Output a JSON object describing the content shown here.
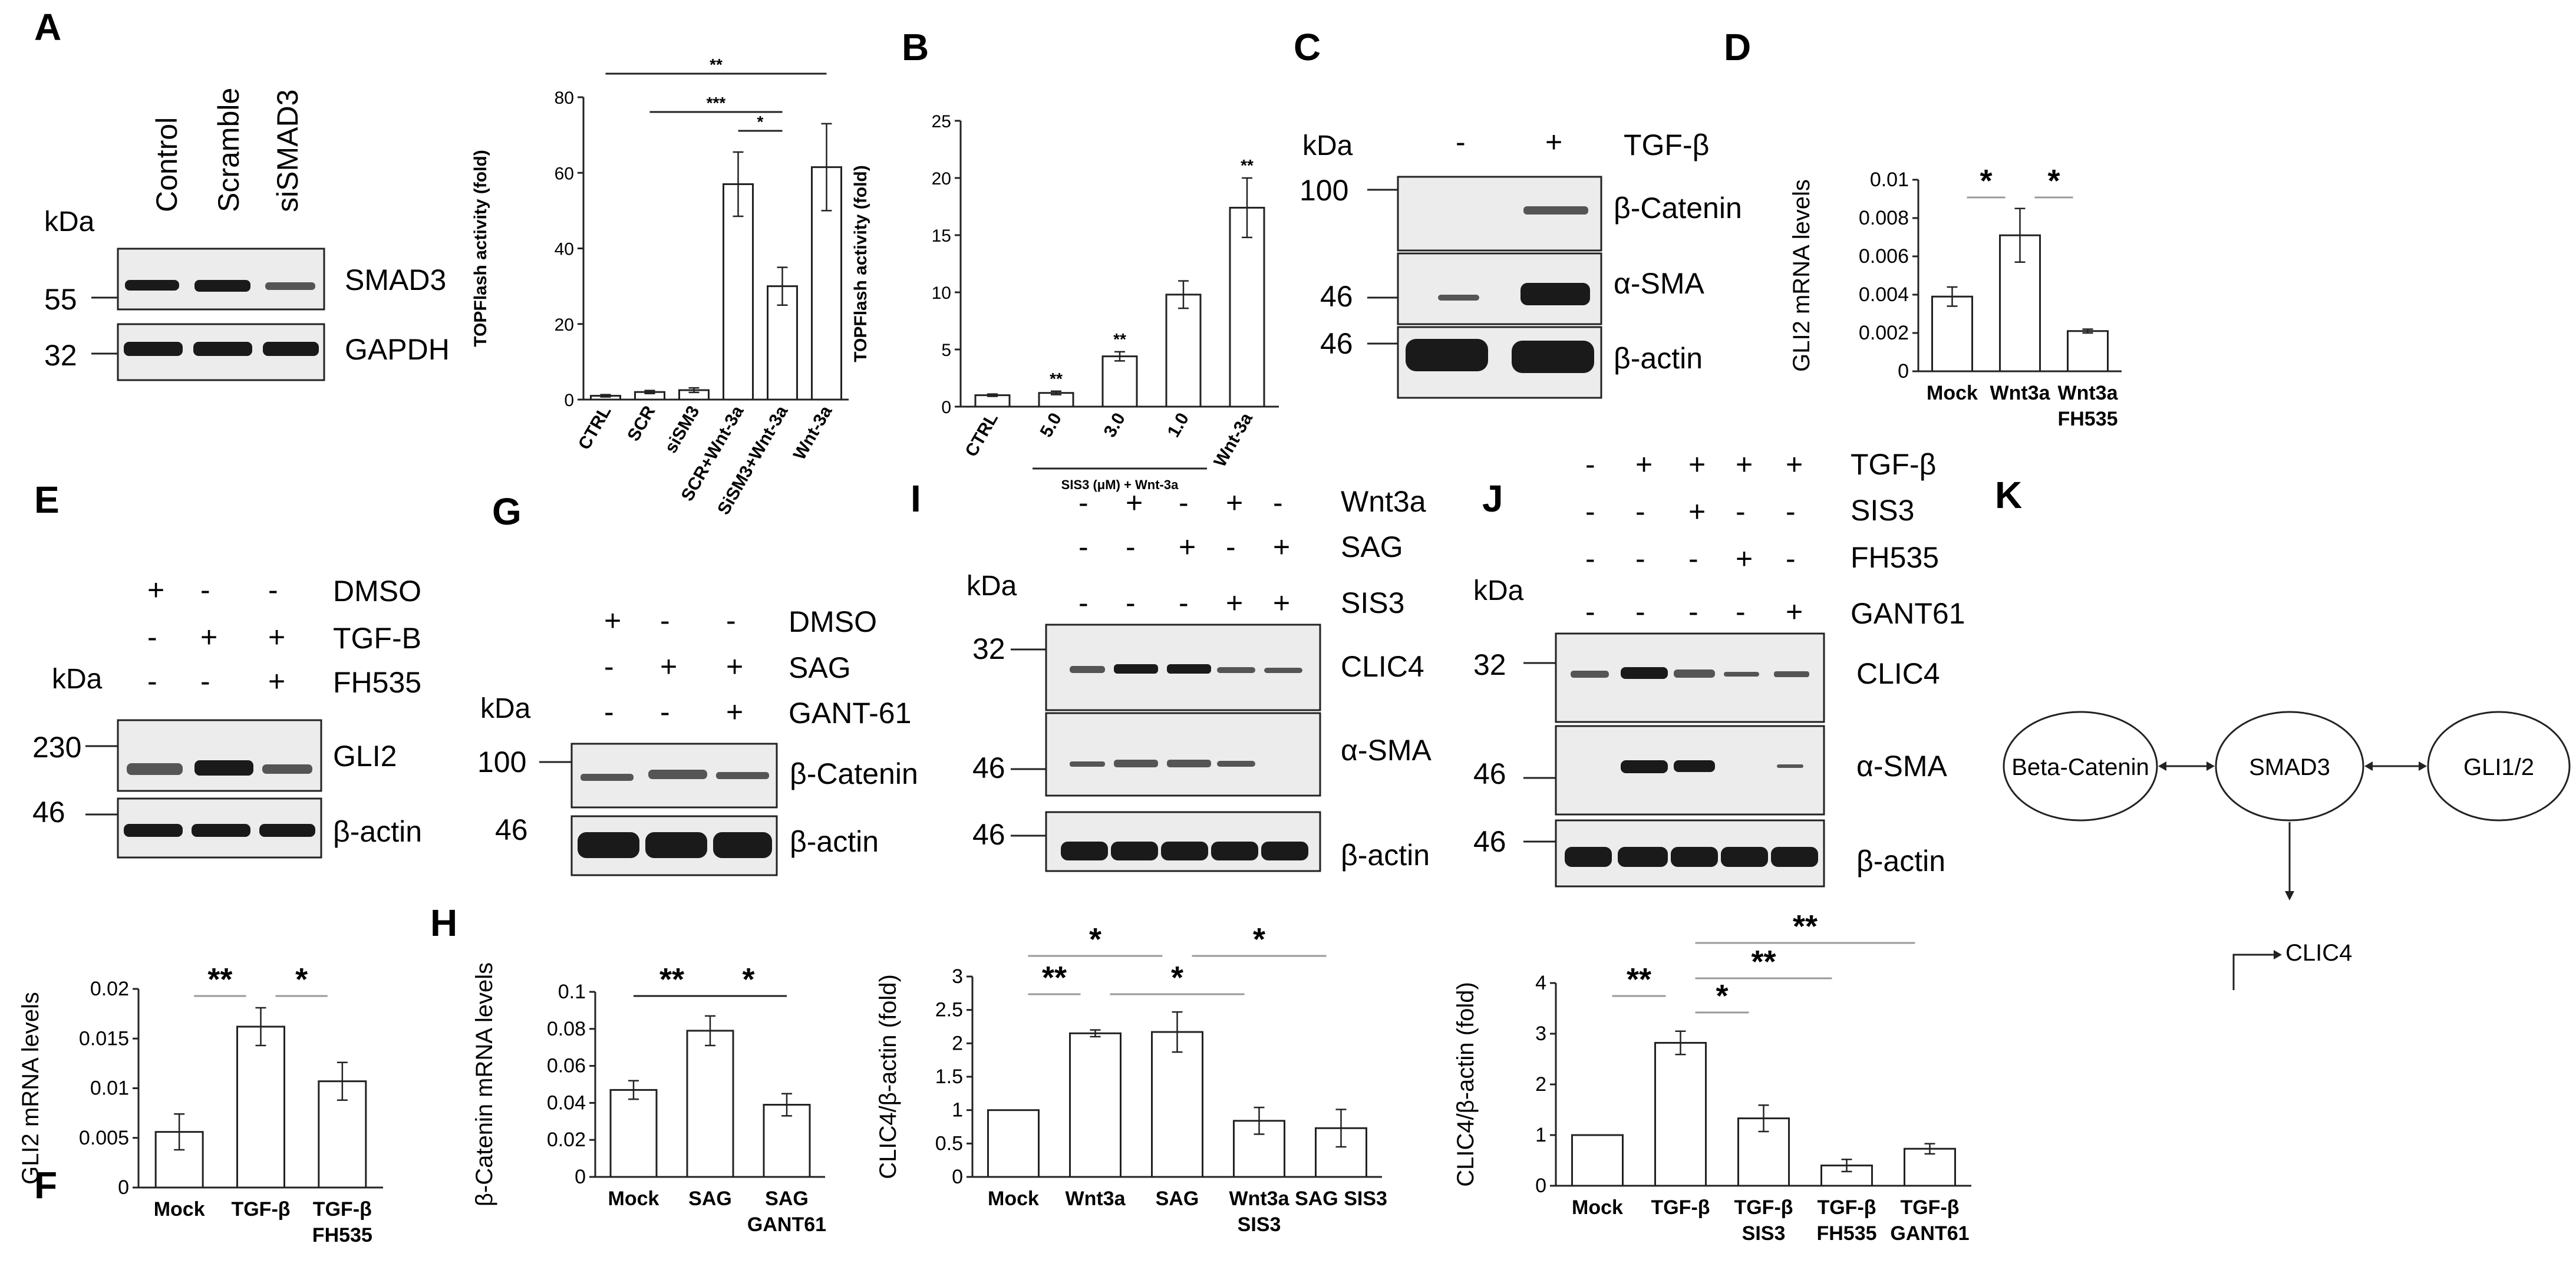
{
  "panel_labels": [
    "A",
    "B",
    "C",
    "D",
    "E",
    "F",
    "G",
    "H",
    "I",
    "J",
    "K"
  ],
  "kda": "kDa",
  "A": {
    "lanes": [
      "Control",
      "Scramble",
      "siSMAD3"
    ],
    "markers": [
      "55",
      "32"
    ],
    "rows": [
      "SMAD3",
      "GAPDH"
    ]
  },
  "C": {
    "signs": [
      "-",
      "+"
    ],
    "treatment": "TGF-β",
    "markers": [
      "100",
      "46",
      "46"
    ],
    "rows": [
      "β-Catenin",
      "α-SMA",
      "β-actin"
    ]
  },
  "E": {
    "conds": [
      {
        "label": "DMSO",
        "signs": [
          "+",
          "-",
          "-"
        ]
      },
      {
        "label": "TGF-B",
        "signs": [
          "-",
          "+",
          "+"
        ]
      },
      {
        "label": "FH535",
        "signs": [
          "-",
          "-",
          "+"
        ]
      }
    ],
    "markers": [
      "230",
      "46"
    ],
    "rows": [
      "GLI2",
      "β-actin"
    ]
  },
  "G": {
    "conds": [
      {
        "label": "DMSO",
        "signs": [
          "+",
          "-",
          "-"
        ]
      },
      {
        "label": "SAG",
        "signs": [
          "-",
          "+",
          "+"
        ]
      },
      {
        "label": "GANT-61",
        "signs": [
          "-",
          "-",
          "+"
        ]
      }
    ],
    "markers": [
      "100",
      "46"
    ],
    "rows": [
      "β-Catenin",
      "β-actin"
    ]
  },
  "I": {
    "conds": [
      {
        "label": "Wnt3a",
        "signs": [
          "-",
          "+",
          "-",
          "+",
          "-"
        ]
      },
      {
        "label": "SAG",
        "signs": [
          "-",
          "-",
          "+",
          "-",
          "+"
        ]
      },
      {
        "label": "SIS3",
        "signs": [
          "-",
          "-",
          "-",
          "+",
          "+"
        ]
      }
    ],
    "markers": [
      "32",
      "46",
      "46"
    ],
    "rows": [
      "CLIC4",
      "α-SMA",
      "β-actin"
    ]
  },
  "J": {
    "conds": [
      {
        "label": "TGF-β",
        "signs": [
          "-",
          "+",
          "+",
          "+",
          "+"
        ]
      },
      {
        "label": "SIS3",
        "signs": [
          "-",
          "-",
          "+",
          "-",
          "-"
        ]
      },
      {
        "label": "FH535",
        "signs": [
          "-",
          "-",
          "-",
          "+",
          "-"
        ]
      },
      {
        "label": "GANT61",
        "signs": [
          "-",
          "-",
          "-",
          "-",
          "+"
        ]
      }
    ],
    "markers": [
      "32",
      "46",
      "46"
    ],
    "rows": [
      "CLIC4",
      "α-SMA",
      "β-actin"
    ]
  },
  "K": {
    "nodes": [
      "Beta-Catenin",
      "SMAD3",
      "GLI1/2"
    ],
    "gene": "CLIC4"
  },
  "chart_data": [
    {
      "id": "A-chart",
      "type": "bar",
      "ylabel": "TOPFlash activity (fold)",
      "categories": [
        "CTRL",
        "SCR",
        "siSM3",
        "SCR+Wnt-3a",
        "SiSM3+Wnt-3a",
        "Wnt-3a"
      ],
      "values": [
        1,
        2,
        2.5,
        57,
        30,
        61.5
      ],
      "errors": [
        0.3,
        0.4,
        0.6,
        8.5,
        5,
        11.5
      ],
      "ylim": [
        0,
        80
      ],
      "yticks": [
        "0",
        "20",
        "40",
        "60",
        "80"
      ],
      "annotations": [
        {
          "text": "**",
          "from": 0,
          "to": 5
        },
        {
          "text": "***",
          "from": 1,
          "to": 4
        },
        {
          "text": "*",
          "from": 3,
          "to": 4
        }
      ]
    },
    {
      "id": "B-chart",
      "type": "bar",
      "ylabel": "TOPFlash activity (fold)",
      "categories": [
        "CTRL",
        "5.0",
        "3.0",
        "1.0",
        "Wnt-3a"
      ],
      "group_label": "SIS3 (μM) + Wnt-3a",
      "values": [
        1,
        1.2,
        4.4,
        9.8,
        17.4
      ],
      "errors": [
        0.1,
        0.15,
        0.4,
        1.2,
        2.6
      ],
      "ylim": [
        0,
        25
      ],
      "yticks": [
        "0",
        "5",
        "10",
        "15",
        "20",
        "25"
      ],
      "bar_labels": [
        "",
        "**",
        "**",
        "",
        "**"
      ]
    },
    {
      "id": "D-chart",
      "type": "bar",
      "ylabel": "GLI2 mRNA levels",
      "categories": [
        "Mock",
        "Wnt3a",
        "Wnt3a FH535"
      ],
      "values": [
        0.0039,
        0.0071,
        0.0021
      ],
      "errors": [
        0.0005,
        0.0014,
        0.0001
      ],
      "ylim": [
        0,
        0.01
      ],
      "yticks": [
        "0",
        "0.002",
        "0.004",
        "0.006",
        "0.008",
        "0.01"
      ],
      "annotations": [
        {
          "text": "*",
          "from": 0,
          "to": 1
        },
        {
          "text": "*",
          "from": 1,
          "to": 2
        }
      ]
    },
    {
      "id": "F-chart",
      "type": "bar",
      "ylabel": "GLI2 mRNA levels",
      "categories": [
        "Mock",
        "TGF-β",
        "TGF-β FH535"
      ],
      "values": [
        0.0056,
        0.0162,
        0.0107
      ],
      "errors": [
        0.0018,
        0.0019,
        0.0019
      ],
      "ylim": [
        0,
        0.02
      ],
      "yticks": [
        "0",
        "0.005",
        "0.01",
        "0.015",
        "0.02"
      ],
      "annotations": [
        {
          "text": "**",
          "from": 0,
          "to": 1
        },
        {
          "text": "*",
          "from": 1,
          "to": 2
        }
      ]
    },
    {
      "id": "H-chart",
      "type": "bar",
      "ylabel": "β-Catenin mRNA levels",
      "categories": [
        "Mock",
        "SAG",
        "SAG GANT61"
      ],
      "values": [
        0.047,
        0.079,
        0.039
      ],
      "errors": [
        0.005,
        0.008,
        0.006
      ],
      "ylim": [
        0,
        0.1
      ],
      "yticks": [
        "0",
        "0.02",
        "0.04",
        "0.06",
        "0.08",
        "0.1"
      ],
      "annotations": [
        {
          "text": "**",
          "from": 0,
          "to": 1
        },
        {
          "text": "*",
          "from": 1,
          "to": 2
        }
      ]
    },
    {
      "id": "I-chart",
      "type": "bar",
      "ylabel": "CLIC4/β-actin (fold)",
      "categories": [
        "Mock",
        "Wnt3a",
        "SAG",
        "Wnt3a SIS3",
        "SAG SIS3"
      ],
      "values": [
        1,
        2.15,
        2.17,
        0.84,
        0.73
      ],
      "errors": [
        0,
        0.05,
        0.3,
        0.2,
        0.28
      ],
      "ylim": [
        0,
        3
      ],
      "yticks": [
        "0",
        "0.5",
        "1",
        "1.5",
        "2",
        "2.5",
        "3"
      ],
      "annotations": [
        {
          "text": "*",
          "from": 0,
          "to": 2,
          "gray": true
        },
        {
          "text": "*",
          "from": 2,
          "to": 4,
          "gray": true
        },
        {
          "text": "**",
          "from": 0,
          "to": 1
        },
        {
          "text": "*",
          "from": 1,
          "to": 3
        }
      ]
    },
    {
      "id": "J-chart",
      "type": "bar",
      "ylabel": "CLIC4/β-actin (fold)",
      "categories": [
        "Mock",
        "TGF-β",
        "TGF-β SIS3",
        "TGF-β FH535",
        "TGF-β GANT61"
      ],
      "values": [
        1,
        2.82,
        1.33,
        0.4,
        0.73
      ],
      "errors": [
        0,
        0.23,
        0.26,
        0.12,
        0.1
      ],
      "ylim": [
        0,
        4
      ],
      "yticks": [
        "0",
        "1",
        "2",
        "3",
        "4"
      ],
      "annotations": [
        {
          "text": "**",
          "from": 0,
          "to": 1
        },
        {
          "text": "*",
          "from": 1,
          "to": 2
        },
        {
          "text": "**",
          "from": 1,
          "to": 3
        },
        {
          "text": "**",
          "from": 1,
          "to": 4
        }
      ]
    }
  ]
}
